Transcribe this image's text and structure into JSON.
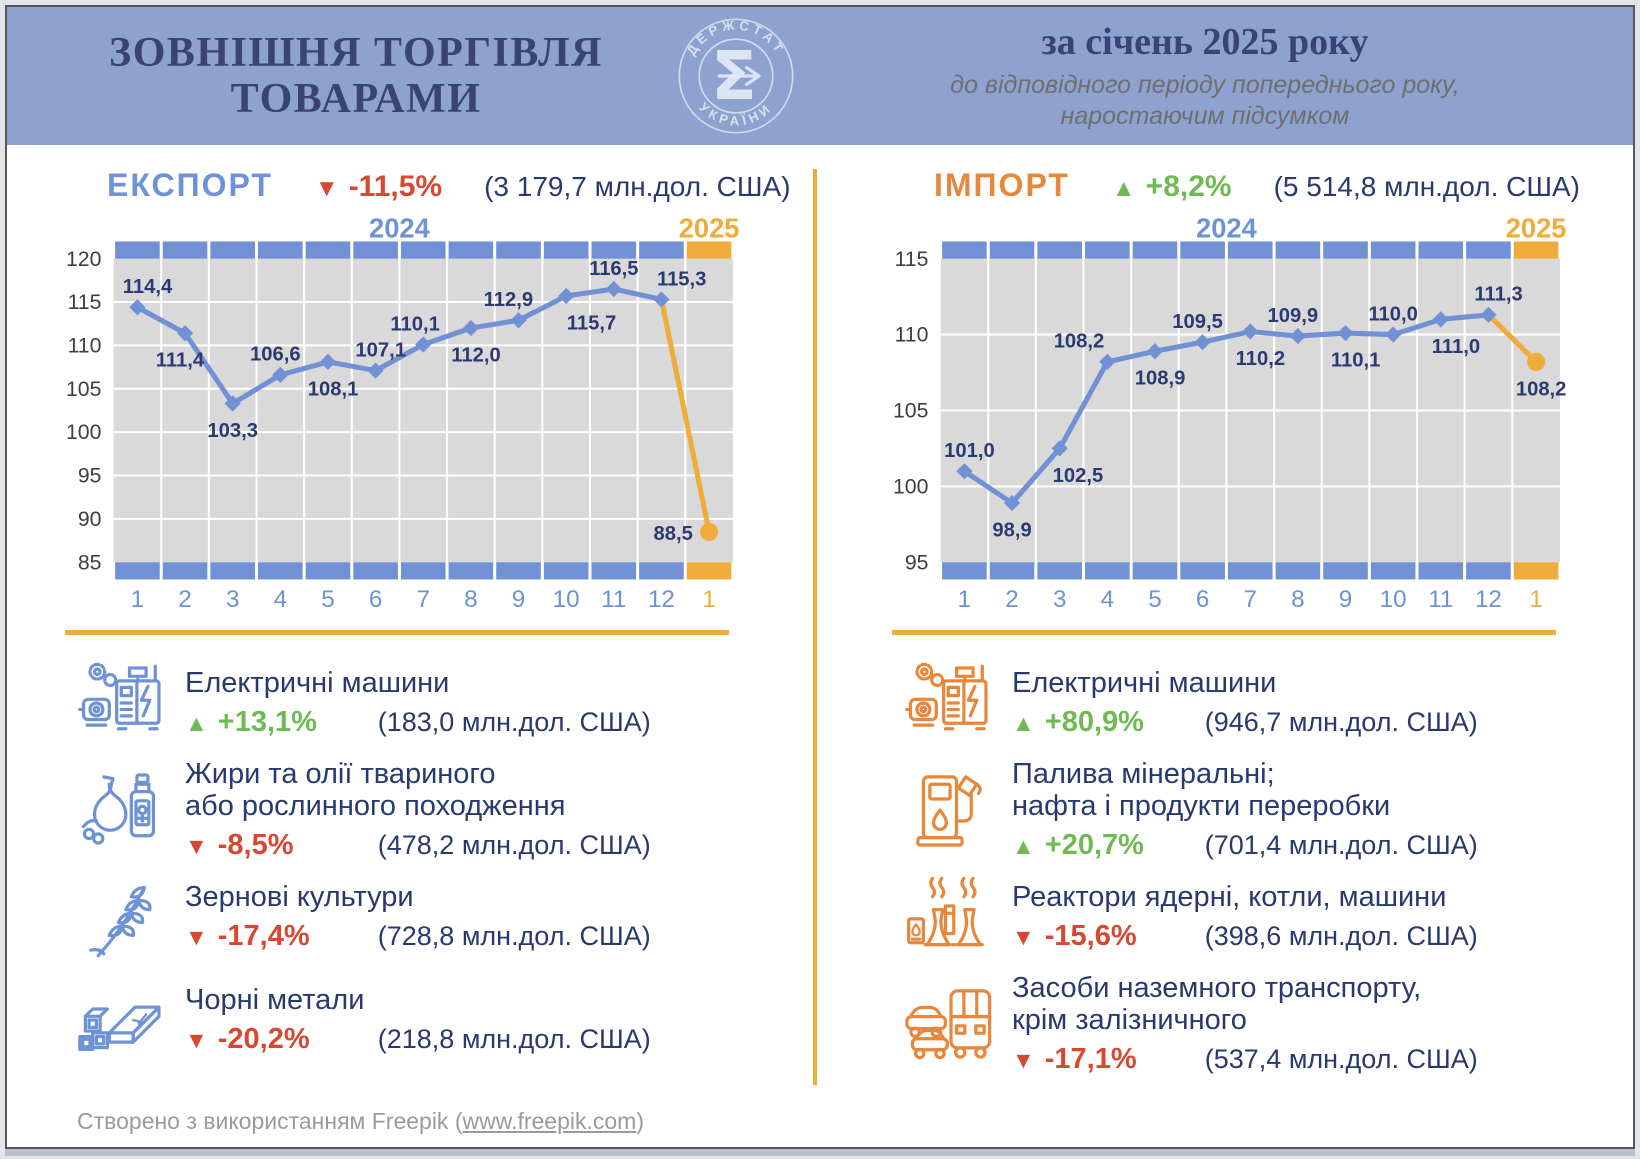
{
  "header": {
    "title_line1": "ЗОВНІШНЯ ТОРГІВЛЯ",
    "title_line2": "ТОВАРАМИ",
    "logo_text_top": "ДЕРЖСТАТ",
    "logo_text_bottom": "УКРАЇНИ",
    "logo_glyph": "Σ",
    "period_title": "за січень 2025 року",
    "period_note_line1": "до відповідного періоду попереднього року,",
    "period_note_line2": "наростаючим підсумком"
  },
  "palette": {
    "header_bg": "#8DA2CE",
    "navy": "#28396F",
    "title_navy": "#3A4377",
    "blue": "#6D92D6",
    "line_blue": "#7191D4",
    "orange": "#EFAC3A",
    "import_orange": "#E8863A",
    "red": "#D8472F",
    "green": "#6FBA55",
    "plot_bg": "#D9D9D9"
  },
  "chart_data": [
    {
      "type": "line",
      "title": "ЕКСПОРТ",
      "dir": "down",
      "arrow": "▼",
      "change": "-11,5%",
      "amount": "(3 179,7 млн.дол. США)",
      "years": [
        "2024",
        "2025"
      ],
      "x": [
        "1",
        "2",
        "3",
        "4",
        "5",
        "6",
        "7",
        "8",
        "9",
        "10",
        "11",
        "12",
        "1"
      ],
      "values": [
        114.4,
        111.4,
        103.3,
        106.6,
        108.1,
        107.1,
        110.1,
        112.0,
        112.9,
        115.7,
        116.5,
        115.3,
        88.5
      ],
      "point_labels": [
        "114,4",
        "111,4",
        "103,3",
        "106,6",
        "108,1",
        "107,1",
        "110,1",
        "112,0",
        "112,9",
        "115,7",
        "116,5",
        "115,3",
        "88,5"
      ],
      "label_pos": [
        "a",
        "b",
        "b",
        "a",
        "b",
        "a",
        "a",
        "b",
        "a",
        "b",
        "a",
        "a",
        "l"
      ],
      "label_dx": [
        10,
        -5,
        0,
        -5,
        5,
        5,
        -8,
        5,
        -10,
        25,
        0,
        20,
        0
      ],
      "ylim": [
        85,
        120
      ],
      "yticks": [
        120,
        115,
        110,
        105,
        100,
        95,
        90,
        85
      ],
      "grid": true,
      "legend_position": "none"
    },
    {
      "type": "line",
      "title": "ІМПОРТ",
      "dir": "up",
      "arrow": "▲",
      "change": "+8,2%",
      "amount": "(5 514,8 млн.дол. США)",
      "years": [
        "2024",
        "2025"
      ],
      "x": [
        "1",
        "2",
        "3",
        "4",
        "5",
        "6",
        "7",
        "8",
        "9",
        "10",
        "11",
        "12",
        "1"
      ],
      "values": [
        101.0,
        98.9,
        102.5,
        108.2,
        108.9,
        109.5,
        110.2,
        109.9,
        110.1,
        110.0,
        111.0,
        111.3,
        108.2
      ],
      "point_labels": [
        "101,0",
        "98,9",
        "102,5",
        "108,2",
        "108,9",
        "109,5",
        "110,2",
        "109,9",
        "110,1",
        "110,0",
        "111,0",
        "111,3",
        "108,2"
      ],
      "label_pos": [
        "a",
        "b",
        "b",
        "a",
        "b",
        "a",
        "b",
        "a",
        "b",
        "a",
        "b",
        "a",
        "b"
      ],
      "label_dx": [
        5,
        0,
        18,
        -28,
        5,
        -5,
        10,
        -5,
        10,
        0,
        15,
        10,
        5
      ],
      "ylim": [
        95,
        115
      ],
      "yticks": [
        115,
        110,
        105,
        100,
        95
      ],
      "grid": true,
      "legend_position": "none"
    }
  ],
  "sections": {
    "export": {
      "items": [
        {
          "icon": "electric-machines-icon",
          "name_lines": [
            "Електричні машини"
          ],
          "arrow": "▲",
          "dir": "up",
          "pct": "+13,1%",
          "amount": "(183,0 млн.дол. США)"
        },
        {
          "icon": "fats-oils-icon",
          "name_lines": [
            "Жири та олії твариного",
            "або рослинного походження"
          ],
          "arrow": "▼",
          "dir": "down",
          "pct": "-8,5%",
          "amount": "(478,2 млн.дол. США)"
        },
        {
          "icon": "cereals-icon",
          "name_lines": [
            "Зернові культури"
          ],
          "arrow": "▼",
          "dir": "down",
          "pct": "-17,4%",
          "amount": "(728,8 млн.дол. США)"
        },
        {
          "icon": "ferrous-metals-icon",
          "name_lines": [
            "Чорні метали"
          ],
          "arrow": "▼",
          "dir": "down",
          "pct": "-20,2%",
          "amount": "(218,8 млн.дол. США)"
        }
      ]
    },
    "import": {
      "items": [
        {
          "icon": "electric-machines-icon",
          "name_lines": [
            "Електричні машини"
          ],
          "arrow": "▲",
          "dir": "up",
          "pct": "+80,9%",
          "amount": "(946,7 млн.дол. США)"
        },
        {
          "icon": "fuel-pump-icon",
          "name_lines": [
            "Палива мінеральні;",
            "нафта і продукти переробки"
          ],
          "arrow": "▲",
          "dir": "up",
          "pct": "+20,7%",
          "amount": "(701,4 млн.дол. США)"
        },
        {
          "icon": "nuclear-reactor-icon",
          "name_lines": [
            "Реактори ядерні, котли, машини"
          ],
          "arrow": "▼",
          "dir": "down",
          "pct": "-15,6%",
          "amount": "(398,6 млн.дол. США)"
        },
        {
          "icon": "vehicles-icon",
          "name_lines": [
            "Засоби наземного транспорту,",
            "крім залізничного"
          ],
          "arrow": "▼",
          "dir": "down",
          "pct": "-17,1%",
          "amount": "(537,4 млн.дол. США)"
        }
      ]
    }
  },
  "footer": {
    "credit_prefix": "Створено з використанням Freepik (",
    "credit_link": "www.freepik.com",
    "credit_suffix": ")"
  }
}
